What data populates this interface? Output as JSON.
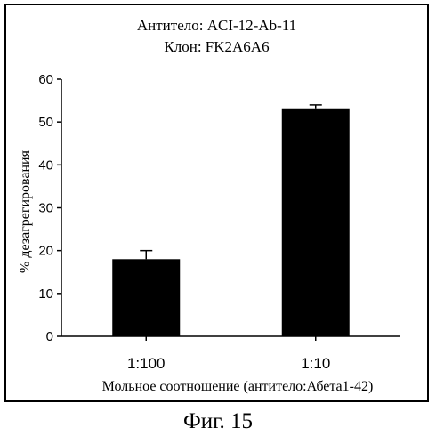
{
  "figure_caption": "Фиг. 15",
  "chart_data": {
    "type": "bar",
    "title_lines": [
      "Антитело: ACI-12-Ab-11",
      "Клон: FK2A6A6"
    ],
    "categories": [
      "1:100",
      "1:10"
    ],
    "values": [
      18,
      53.2
    ],
    "error": [
      2,
      0.8
    ],
    "xlabel": "Мольное соотношение (антитело:Абета1-42)",
    "ylabel": "% дезагрегирования",
    "ylim": [
      0,
      60
    ],
    "yticks": [
      0,
      10,
      20,
      30,
      40,
      50,
      60
    ],
    "grid": false,
    "bar_color": "#000000"
  }
}
